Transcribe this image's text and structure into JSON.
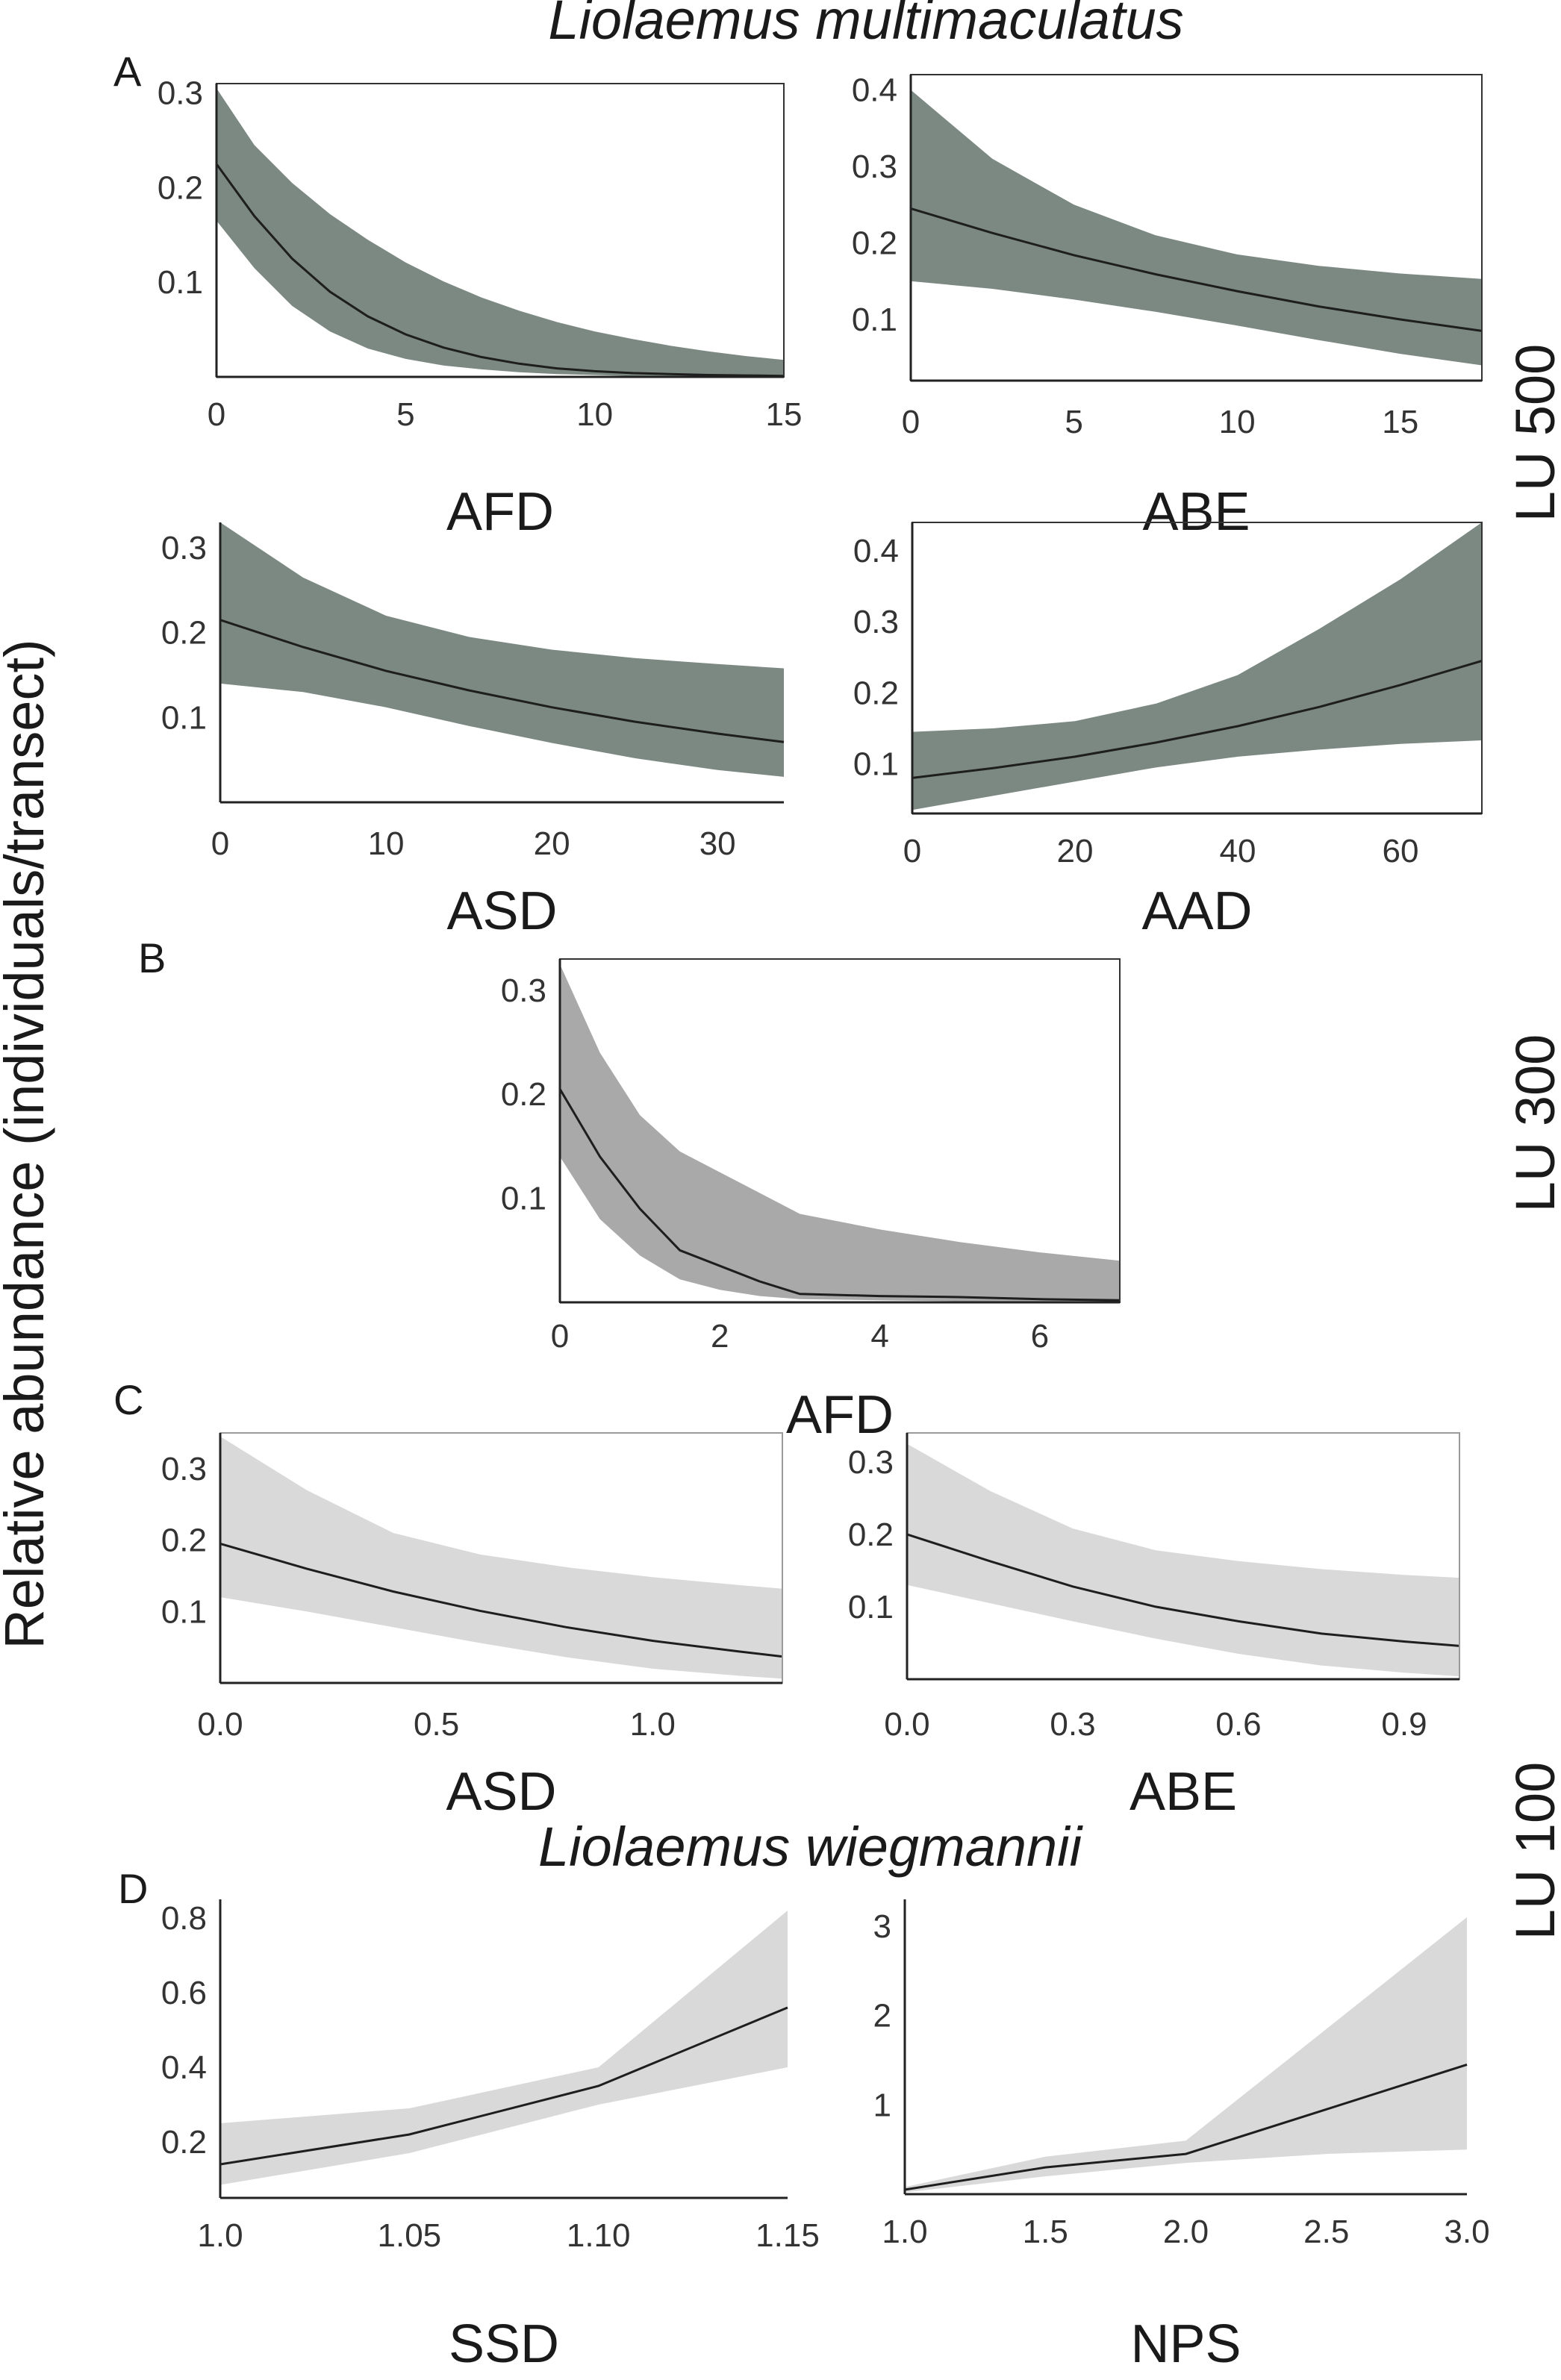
{
  "figure": {
    "title_top": "Liolaemus multimaculatus",
    "title_bottom": "Liolaemus  wiegmannii",
    "ylabel": "Relative abundance (individuals/transect)",
    "panel_labels": [
      "A",
      "B",
      "C",
      "D"
    ],
    "side_labels": [
      "LU 500",
      "LU 300",
      "LU 100"
    ]
  },
  "colors": {
    "dark_band": "#7c8983",
    "mid_band": "#a9a9a9",
    "light_band": "#d9d9d9",
    "line": "#1e1e1e"
  },
  "chart_data": [
    {
      "id": "a1",
      "type": "line",
      "panel": "A",
      "land_use": "LU 500",
      "species": "Liolaemus multimaculatus",
      "xlabel": "AFD",
      "xlim": [
        0,
        15
      ],
      "ylim": [
        0,
        0.31
      ],
      "xticks": [
        0,
        5,
        10,
        15
      ],
      "xtick_labels": [
        "0",
        "5",
        "10",
        "15"
      ],
      "yticks": [
        0.1,
        0.2,
        0.3
      ],
      "ytick_labels": [
        "0.1",
        "0.2",
        "0.3"
      ],
      "x": [
        0,
        1,
        2,
        3,
        4,
        5,
        6,
        7,
        8,
        9,
        10,
        11,
        12,
        13,
        14,
        15
      ],
      "mean": [
        0.225,
        0.17,
        0.125,
        0.09,
        0.064,
        0.045,
        0.031,
        0.021,
        0.014,
        0.009,
        0.006,
        0.004,
        0.003,
        0.002,
        0.0015,
        0.001
      ],
      "lower": [
        0.165,
        0.115,
        0.075,
        0.048,
        0.03,
        0.019,
        0.012,
        0.008,
        0.005,
        0.003,
        0.002,
        0.001,
        0.0008,
        0.0006,
        0.0005,
        0.0004
      ],
      "upper": [
        0.305,
        0.245,
        0.205,
        0.172,
        0.145,
        0.121,
        0.101,
        0.084,
        0.07,
        0.058,
        0.048,
        0.04,
        0.033,
        0.027,
        0.022,
        0.018
      ]
    },
    {
      "id": "a2",
      "type": "line",
      "panel": "A",
      "land_use": "LU 500",
      "species": "Liolaemus multimaculatus",
      "xlabel": "ABE",
      "xlim": [
        0,
        17.5
      ],
      "ylim": [
        0.02,
        0.42
      ],
      "xticks": [
        0,
        5,
        10,
        15
      ],
      "xtick_labels": [
        "0",
        "5",
        "10",
        "15"
      ],
      "yticks": [
        0.1,
        0.2,
        0.3,
        0.4
      ],
      "ytick_labels": [
        "0.1",
        "0.2",
        "0.3",
        "0.4"
      ],
      "x": [
        0,
        2.5,
        5,
        7.5,
        10,
        12.5,
        15,
        17.5
      ],
      "mean": [
        0.245,
        0.213,
        0.184,
        0.159,
        0.137,
        0.117,
        0.1,
        0.085
      ],
      "lower": [
        0.15,
        0.14,
        0.126,
        0.11,
        0.092,
        0.073,
        0.055,
        0.04
      ],
      "upper": [
        0.4,
        0.31,
        0.25,
        0.21,
        0.185,
        0.17,
        0.16,
        0.153
      ]
    },
    {
      "id": "a3",
      "type": "line",
      "panel": "A",
      "land_use": "LU 500",
      "species": "Liolaemus multimaculatus",
      "xlabel": "ASD",
      "xlim": [
        0,
        34
      ],
      "ylim": [
        0,
        0.33
      ],
      "xticks": [
        0,
        10,
        20,
        30
      ],
      "xtick_labels": [
        "0",
        "10",
        "20",
        "30"
      ],
      "yticks": [
        0.1,
        0.2,
        0.3
      ],
      "ytick_labels": [
        "0.1",
        "0.2",
        "0.3"
      ],
      "x": [
        0,
        5,
        10,
        15,
        20,
        25,
        30,
        34
      ],
      "mean": [
        0.215,
        0.183,
        0.155,
        0.132,
        0.112,
        0.095,
        0.081,
        0.071
      ],
      "lower": [
        0.14,
        0.13,
        0.112,
        0.09,
        0.07,
        0.052,
        0.038,
        0.03
      ],
      "upper": [
        0.33,
        0.265,
        0.22,
        0.195,
        0.18,
        0.17,
        0.163,
        0.158
      ]
    },
    {
      "id": "a4",
      "type": "line",
      "panel": "A",
      "land_use": "LU 500",
      "species": "Liolaemus multimaculatus",
      "xlabel": "AAD",
      "xlim": [
        0,
        70
      ],
      "ylim": [
        0.03,
        0.44
      ],
      "xticks": [
        0,
        20,
        40,
        60
      ],
      "xtick_labels": [
        "0",
        "20",
        "40",
        "60"
      ],
      "yticks": [
        0.1,
        0.2,
        0.3,
        0.4
      ],
      "ytick_labels": [
        "0.1",
        "0.2",
        "0.3",
        "0.4"
      ],
      "x": [
        0,
        10,
        20,
        30,
        40,
        50,
        60,
        70
      ],
      "mean": [
        0.08,
        0.094,
        0.11,
        0.13,
        0.153,
        0.18,
        0.211,
        0.245
      ],
      "lower": [
        0.035,
        0.055,
        0.075,
        0.095,
        0.11,
        0.12,
        0.128,
        0.133
      ],
      "upper": [
        0.145,
        0.15,
        0.16,
        0.185,
        0.225,
        0.29,
        0.36,
        0.44
      ]
    },
    {
      "id": "b1",
      "type": "line",
      "panel": "B",
      "land_use": "LU 300",
      "species": "Liolaemus multimaculatus",
      "xlabel": "AFD",
      "xlim": [
        0,
        7
      ],
      "ylim": [
        0,
        0.33
      ],
      "xticks": [
        0,
        2,
        4,
        6
      ],
      "xtick_labels": [
        "0",
        "2",
        "4",
        "6"
      ],
      "yticks": [
        0.1,
        0.2,
        0.3
      ],
      "ytick_labels": [
        "0.1",
        "0.2",
        "0.3"
      ],
      "x": [
        0,
        0.5,
        1,
        1.5,
        2,
        2.5,
        3,
        4,
        5,
        6,
        7
      ],
      "mean": [
        0.205,
        0.14,
        0.09,
        0.05,
        0.035,
        0.02,
        0.008,
        0.006,
        0.005,
        0.003,
        0.002
      ],
      "lower": [
        0.14,
        0.08,
        0.045,
        0.022,
        0.012,
        0.006,
        0.003,
        0.002,
        0.001,
        0.0008,
        0.0005
      ],
      "upper": [
        0.325,
        0.24,
        0.18,
        0.145,
        0.125,
        0.105,
        0.085,
        0.07,
        0.058,
        0.048,
        0.04
      ]
    },
    {
      "id": "c1",
      "type": "line",
      "panel": "C",
      "land_use": "LU 100",
      "species": "Liolaemus multimaculatus",
      "xlabel": "ASD",
      "xlim": [
        0,
        1.3
      ],
      "ylim": [
        0,
        0.35
      ],
      "xticks": [
        0,
        0.5,
        1.0
      ],
      "xtick_labels": [
        "0.0",
        "0.5",
        "1.0"
      ],
      "yticks": [
        0.1,
        0.2,
        0.3
      ],
      "ytick_labels": [
        "0.1",
        "0.2",
        "0.3"
      ],
      "x": [
        0,
        0.2,
        0.4,
        0.6,
        0.8,
        1.0,
        1.2,
        1.3
      ],
      "mean": [
        0.195,
        0.16,
        0.128,
        0.101,
        0.078,
        0.059,
        0.044,
        0.037
      ],
      "lower": [
        0.12,
        0.1,
        0.078,
        0.056,
        0.036,
        0.02,
        0.01,
        0.006
      ],
      "upper": [
        0.345,
        0.27,
        0.21,
        0.18,
        0.162,
        0.148,
        0.137,
        0.132
      ]
    },
    {
      "id": "c2",
      "type": "line",
      "panel": "C",
      "land_use": "LU 100",
      "species": "Liolaemus multimaculatus",
      "xlabel": "ABE",
      "xlim": [
        0,
        1.0
      ],
      "ylim": [
        0,
        0.34
      ],
      "xticks": [
        0,
        0.3,
        0.6,
        0.9
      ],
      "xtick_labels": [
        "0.0",
        "0.3",
        "0.6",
        "0.9"
      ],
      "yticks": [
        0.1,
        0.2,
        0.3
      ],
      "ytick_labels": [
        "0.1",
        "0.2",
        "0.3"
      ],
      "x": [
        0,
        0.15,
        0.3,
        0.45,
        0.6,
        0.75,
        0.9,
        1.0
      ],
      "mean": [
        0.2,
        0.163,
        0.128,
        0.1,
        0.08,
        0.063,
        0.052,
        0.046
      ],
      "lower": [
        0.13,
        0.105,
        0.08,
        0.056,
        0.035,
        0.019,
        0.009,
        0.004
      ],
      "upper": [
        0.325,
        0.26,
        0.208,
        0.178,
        0.163,
        0.152,
        0.144,
        0.14
      ]
    },
    {
      "id": "d1",
      "type": "line",
      "panel": "D",
      "land_use": "LU 100",
      "species": "Liolaemus  wiegmannii",
      "xlabel": "SSD",
      "xlim": [
        1.0,
        1.15
      ],
      "ylim": [
        0.05,
        0.85
      ],
      "xticks": [
        1.0,
        1.05,
        1.1,
        1.15
      ],
      "xtick_labels": [
        "1.0",
        "1.05",
        "1.10",
        "1.15"
      ],
      "yticks": [
        0.2,
        0.4,
        0.6,
        0.8
      ],
      "ytick_labels": [
        "0.2",
        "0.4",
        "0.6",
        "0.8"
      ],
      "x": [
        1.0,
        1.05,
        1.1,
        1.15
      ],
      "mean": [
        0.14,
        0.22,
        0.35,
        0.56
      ],
      "lower": [
        0.085,
        0.17,
        0.3,
        0.4
      ],
      "upper": [
        0.25,
        0.29,
        0.4,
        0.82
      ]
    },
    {
      "id": "d2",
      "type": "line",
      "panel": "D",
      "land_use": "LU 100",
      "species": "Liolaemus  wiegmannii",
      "xlabel": "NPS",
      "xlim": [
        1.0,
        3.0
      ],
      "ylim": [
        0,
        3.3
      ],
      "xticks": [
        1.0,
        1.5,
        2.0,
        2.5,
        3.0
      ],
      "xtick_labels": [
        "1.0",
        "1.5",
        "2.0",
        "2.5",
        "3.0"
      ],
      "yticks": [
        1,
        2,
        3
      ],
      "ytick_labels": [
        "1",
        "2",
        "3"
      ],
      "x": [
        1.0,
        1.5,
        2.0,
        2.5,
        3.0
      ],
      "mean": [
        0.05,
        0.3,
        0.45,
        0.95,
        1.45
      ],
      "lower": [
        0.02,
        0.2,
        0.35,
        0.45,
        0.5
      ],
      "upper": [
        0.08,
        0.42,
        0.6,
        1.85,
        3.1
      ]
    }
  ]
}
